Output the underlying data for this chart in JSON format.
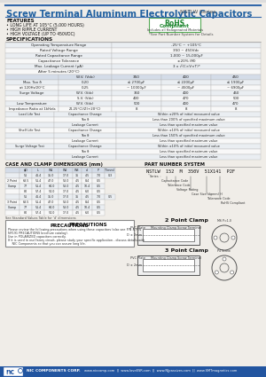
{
  "bg_color": "#f0ede8",
  "title_main": "Screw Terminal Aluminum Electrolytic Capacitors",
  "title_series": "NSTLW Series",
  "title_color": "#2060a0",
  "features": [
    "FEATURES",
    "• LONG LIFE AT 105°C (5,000 HOURS)",
    "• HIGH RIPPLE CURRENT",
    "• HIGH VOLTAGE (UP TO 450VDC)"
  ],
  "rohs_lines": [
    "RoHS",
    "Compliant",
    "Includes all Halogenated Materials"
  ],
  "rohs_note": "*See Part Number System for Details",
  "specs_title": "SPECIFICATIONS",
  "spec_simple": [
    [
      "Operating Temperature Range",
      "-25°C ~ +105°C"
    ],
    [
      "Rated Voltage Range",
      "350 ~ 450Vdc"
    ],
    [
      "Rated Capacitance Range",
      "1,000 ~ 15,000μF"
    ],
    [
      "Capacitance Tolerance",
      "±20% (M)"
    ],
    [
      "Max. Leakage Current (μA)",
      "3 x √(C×V×T)*"
    ],
    [
      "After 5 minutes (20°C)",
      ""
    ]
  ],
  "spec_header": [
    "",
    "W.V. (Vdc)",
    "350",
    "400",
    "450"
  ],
  "spec_multi": [
    [
      "Max. Tan δ",
      "0.20",
      "≤ 2700μF",
      "≤ 2200μF",
      "≤ 1900μF"
    ],
    [
      "at 120Hz/20°C",
      "0.25",
      "~ 10000μF",
      "~ 4500μF",
      "~ 6900μF"
    ]
  ],
  "spec_surge": [
    [
      "Surge Voltage",
      "W.V. (Vdc)",
      "350",
      "400",
      "450"
    ],
    [
      "",
      "S.V. (Vdc)",
      "400",
      "470",
      "500"
    ],
    [
      "Low Temperature",
      "W.V. (Vdc)",
      "500",
      "400",
      "470"
    ],
    [
      "Impedance Ratio at 1kHz/a",
      "Z(-25°C)/Z(+20°C)",
      "8",
      "8",
      "8"
    ]
  ],
  "load_tests": [
    [
      "Load Life Test\n5,000 hours at +105°C",
      "Capacitance Change",
      "Within ±20% of initial measured value"
    ],
    [
      "",
      "Tan δ",
      "Less than 200% of specified maximum value"
    ],
    [
      "",
      "Leakage Current",
      "Less than specified maximum value"
    ],
    [
      "Shelf Life Test\n96 hours at +105°C\n(no load)",
      "Capacitance Change",
      "Within ±10% of initial measured value"
    ],
    [
      "",
      "Tan δ",
      "Less than 150% of specified maximum value"
    ],
    [
      "",
      "Leakage Current",
      "Less than specified maximum value"
    ],
    [
      "Surge Voltage Test\n1000 Cycles of 30 seconds duration\nevery 5 minutes at 15°~35°C",
      "Capacitance Change",
      "Within ±10% of initial measured value"
    ],
    [
      "",
      "Tan δ",
      "Less than specified maximum value"
    ],
    [
      "",
      "Leakage Current",
      "Less than specified maximum value"
    ]
  ],
  "case_title": "CASE AND CLAMP DIMENSIONS (mm)",
  "part_title": "PART NUMBER SYSTEM",
  "case_header2": [
    "ϕD",
    "L",
    "W1",
    "W2",
    "W3",
    "d",
    "P",
    "T(mm)"
  ],
  "case_2pt": [
    [
      "",
      "51",
      "41.4",
      "35.0",
      "17.0",
      "35",
      "4.5",
      "7.0",
      "0.3"
    ],
    [
      "2 Point",
      "63.5",
      "51.4",
      "47.0",
      "53.0",
      "4.5",
      "8.4",
      "0.5"
    ],
    [
      "Clamp",
      "77",
      "51.4",
      "64.0",
      "53.0",
      "4.5",
      "10.4",
      "0.5"
    ],
    [
      "",
      "80",
      "57.4",
      "54.0",
      "17.0",
      "4.5",
      "6.0",
      "0.5"
    ]
  ],
  "case_3pt": [
    [
      "",
      "51",
      "41.4",
      "35.0",
      "17.0",
      "35",
      "4.5",
      "7.0",
      "0.5"
    ],
    [
      "3 Point",
      "63.5",
      "51.4",
      "47.0",
      "53.0",
      "4.5",
      "8.4",
      "0.5"
    ],
    [
      "Clamp",
      "77",
      "51.4",
      "64.0",
      "53.0",
      "4.5",
      "10.4",
      "0.5"
    ],
    [
      "",
      "80",
      "57.4",
      "54.0",
      "17.0",
      "4.5",
      "6.0",
      "0.5"
    ]
  ],
  "std_values_note": "See Standard Values Table for 'd' dimensions",
  "part_number": "NSTLW  152  M  350V  51X141  P2F",
  "part_labels": [
    [
      "RoHS Compliant",
      ""
    ],
    [
      "(2 point clamp)",
      "or (4 point for hardware)"
    ],
    [
      "Case Size (dmm) H",
      ""
    ],
    [
      "Voltage Rating",
      ""
    ],
    [
      "Tolerance Code",
      ""
    ],
    [
      "Capacitance Code",
      ""
    ],
    [
      "Series",
      ""
    ]
  ],
  "precautions_title": "PRECAUTIONS",
  "precautions_text": [
    "Please review the following precautions when using these capacitors (also see P/N & P/N",
    "NF191 PRECAUTIONS brochure catalog).",
    "Use in POLARIZED capacitors correctly.",
    "If it is used in oscillatory circuit, please study your specific application - discuss details with",
    "    NIC Components so that you can assure long life."
  ],
  "diag_2pt_title": "2 Point Clamp",
  "diag_3pt_title": "3 Point Clamp",
  "bottom_page": "178",
  "bottom_company": "NIC COMPONENTS CORP.",
  "bottom_urls": "www.niccomp.com  ||  www.loveESR.com  ||  www.NJpassives.com  ||  www.SMTmagnetics.com"
}
